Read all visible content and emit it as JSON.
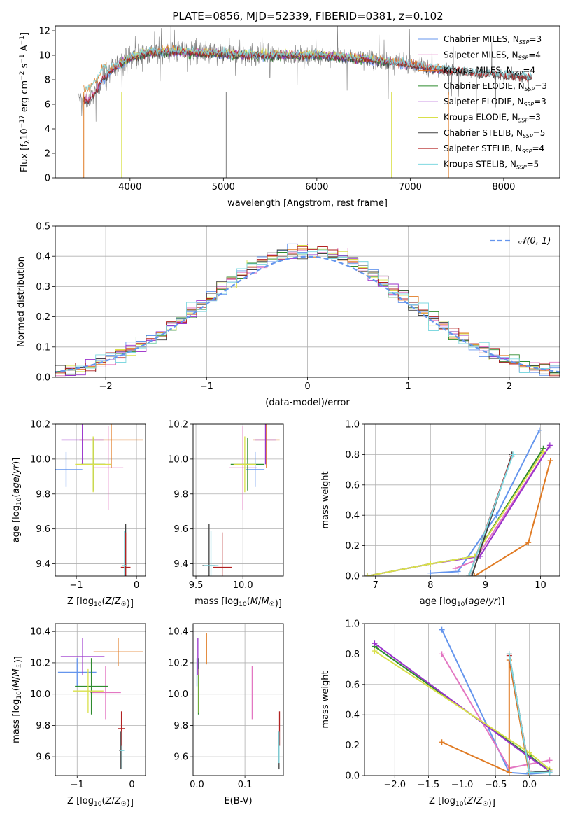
{
  "chart_data": [
    {
      "id": "spectrum",
      "type": "line",
      "title": "PLATE=0856, MJD=52339, FIBERID=0381, z=0.102",
      "xlabel": "wavelength [Angstrom, rest frame]",
      "ylabel": "Flux [f_λ10^{-17} erg cm^{-2} s^{-1} A^{-1}]",
      "xlim": [
        3200,
        8600
      ],
      "ylim": [
        0,
        12.4
      ],
      "xticks": [
        4000,
        5000,
        6000,
        7000,
        8000
      ],
      "yticks": [
        0,
        2,
        4,
        6,
        8,
        10,
        12
      ],
      "legend_position": "right",
      "series": [
        {
          "name": "Chabrier MILES, N_SSP=3",
          "color": "#6495ed",
          "start": 3500,
          "end": 7400
        },
        {
          "name": "Salpeter MILES, N_SSP=4",
          "color": "#e377c2",
          "start": 3500,
          "end": 7400
        },
        {
          "name": "Kroupa MILES, N_SSP=4",
          "color": "#e07b24",
          "start": 3500,
          "end": 7400
        },
        {
          "name": "Chabrier ELODIE, N_SSP=3",
          "color": "#2e8b2e",
          "start": 3900,
          "end": 6800
        },
        {
          "name": "Salpeter ELODIE, N_SSP=3",
          "color": "#9932cc",
          "start": 3900,
          "end": 6800
        },
        {
          "name": "Kroupa ELODIE, N_SSP=3",
          "color": "#d9e04a",
          "start": 3900,
          "end": 6800
        },
        {
          "name": "Chabrier STELIB, N_SSP=5",
          "color": "#404040",
          "start": 3500,
          "end": 8300
        },
        {
          "name": "Salpeter STELIB, N_SSP=4",
          "color": "#b22222",
          "start": 3500,
          "end": 8300
        },
        {
          "name": "Kroupa STELIB, N_SSP=5",
          "color": "#7fd8e0",
          "start": 3500,
          "end": 8300
        }
      ],
      "data_color": "#808080",
      "continuum": {
        "x": [
          3450,
          3550,
          3650,
          3700,
          3800,
          3900,
          4000,
          4200,
          4500,
          5000,
          5500,
          6000,
          6500,
          7000,
          7500,
          8000,
          8300
        ],
        "y": [
          6.5,
          6.3,
          7.2,
          8.0,
          8.8,
          9.3,
          9.8,
          10.2,
          10.3,
          10.1,
          10.0,
          10.0,
          9.7,
          9.2,
          8.7,
          8.4,
          8.2
        ]
      }
    },
    {
      "id": "residuals",
      "type": "histogram",
      "xlabel": "(data-model)/error",
      "ylabel": "Normed distribution",
      "xlim": [
        -2.5,
        2.5
      ],
      "ylim": [
        0,
        0.5
      ],
      "xticks": [
        -2,
        -1,
        0,
        1,
        2
      ],
      "yticks": [
        0.0,
        0.1,
        0.2,
        0.3,
        0.4,
        0.5
      ],
      "legend": [
        {
          "name": "N(0,1)",
          "label_text": "𝒩(0, 1)",
          "color": "#6495ed",
          "style": "dashed"
        }
      ],
      "bin_width": 0.1
    },
    {
      "id": "age-vs-Z",
      "type": "errorbar",
      "xlabel": "Z [log10(Z/Z☉)]",
      "ylabel": "age [log10(age/yr)]",
      "xlim": [
        -1.35,
        0.15
      ],
      "ylim": [
        9.33,
        10.2
      ],
      "xticks": [
        -1,
        0
      ],
      "yticks": [
        9.4,
        9.6,
        9.8,
        10.0,
        10.2
      ],
      "points": [
        {
          "color": "#6495ed",
          "x": -1.17,
          "xerr": 0.27,
          "y": 9.94,
          "yerr": 0.1
        },
        {
          "color": "#e377c2",
          "x": -0.47,
          "xerr": 0.25,
          "y": 9.95,
          "yerr": 0.24
        },
        {
          "color": "#e07b24",
          "x": -0.42,
          "xerr": 0.53,
          "y": 10.11,
          "yerr": 0.16
        },
        {
          "color": "#2e8b2e",
          "x": -0.72,
          "xerr": 0.2,
          "y": 9.97,
          "yerr": 0.15
        },
        {
          "color": "#9932cc",
          "x": -0.9,
          "xerr": 0.35,
          "y": 10.11,
          "yerr": 0.14
        },
        {
          "color": "#d9e04a",
          "x": -0.72,
          "xerr": 0.3,
          "y": 9.97,
          "yerr": 0.16
        },
        {
          "color": "#404040",
          "x": -0.18,
          "xerr": 0.02,
          "y": 9.39,
          "yerr": 0.24
        },
        {
          "color": "#b22222",
          "x": -0.18,
          "xerr": 0.08,
          "y": 9.38,
          "yerr": 0.2
        },
        {
          "color": "#7fd8e0",
          "x": -0.2,
          "xerr": 0.04,
          "y": 9.39,
          "yerr": 0.2
        }
      ]
    },
    {
      "id": "age-vs-mass",
      "type": "errorbar",
      "xlabel": "mass [log10(M/M☉)]",
      "ylabel": "",
      "xlim": [
        9.47,
        10.43
      ],
      "ylim": [
        9.33,
        10.2
      ],
      "xticks": [
        9.5,
        10.0
      ],
      "yticks": [
        9.4,
        9.6,
        9.8,
        10.0,
        10.2
      ],
      "points": [
        {
          "color": "#6495ed",
          "x": 10.13,
          "xerr": 0.1,
          "y": 9.94,
          "yerr": 0.1
        },
        {
          "color": "#e377c2",
          "x": 10.0,
          "xerr": 0.15,
          "y": 9.95,
          "yerr": 0.24
        },
        {
          "color": "#e07b24",
          "x": 10.25,
          "xerr": 0.14,
          "y": 10.11,
          "yerr": 0.16
        },
        {
          "color": "#2e8b2e",
          "x": 10.05,
          "xerr": 0.18,
          "y": 9.97,
          "yerr": 0.15
        },
        {
          "color": "#9932cc",
          "x": 10.24,
          "xerr": 0.11,
          "y": 10.11,
          "yerr": 0.14
        },
        {
          "color": "#d9e04a",
          "x": 10.02,
          "xerr": 0.12,
          "y": 9.97,
          "yerr": 0.16
        },
        {
          "color": "#404040",
          "x": 9.64,
          "xerr": 0.07,
          "y": 9.39,
          "yerr": 0.24
        },
        {
          "color": "#b22222",
          "x": 9.78,
          "xerr": 0.1,
          "y": 9.38,
          "yerr": 0.2
        },
        {
          "color": "#7fd8e0",
          "x": 9.66,
          "xerr": 0.08,
          "y": 9.39,
          "yerr": 0.2
        }
      ]
    },
    {
      "id": "massweight-vs-age",
      "type": "line",
      "xlabel": "age [log10(age/yr)]",
      "ylabel": "mass weight",
      "xlim": [
        6.8,
        10.35
      ],
      "ylim": [
        0,
        1.0
      ],
      "xticks": [
        7,
        8,
        9,
        10
      ],
      "yticks": [
        0.0,
        0.2,
        0.4,
        0.6,
        0.8,
        1.0
      ],
      "series": [
        {
          "color": "#6495ed",
          "points": [
            [
              8.0,
              0.02
            ],
            [
              8.5,
              0.03
            ],
            [
              9.2,
              0.4
            ],
            [
              9.98,
              0.96
            ]
          ]
        },
        {
          "color": "#e377c2",
          "points": [
            [
              8.45,
              0.05
            ],
            [
              8.8,
              0.1
            ],
            [
              10.15,
              0.85
            ]
          ]
        },
        {
          "color": "#e07b24",
          "points": [
            [
              8.8,
              0.0
            ],
            [
              9.78,
              0.22
            ],
            [
              10.18,
              0.76
            ]
          ]
        },
        {
          "color": "#2e8b2e",
          "points": [
            [
              6.85,
              0.0
            ],
            [
              8.0,
              0.08
            ],
            [
              8.8,
              0.13
            ],
            [
              10.05,
              0.84
            ]
          ]
        },
        {
          "color": "#9932cc",
          "points": [
            [
              6.85,
              0.0
            ],
            [
              8.0,
              0.08
            ],
            [
              8.9,
              0.13
            ],
            [
              10.17,
              0.86
            ]
          ]
        },
        {
          "color": "#d9e04a",
          "points": [
            [
              6.85,
              0.0
            ],
            [
              8.0,
              0.08
            ],
            [
              8.8,
              0.13
            ],
            [
              10.05,
              0.82
            ]
          ]
        },
        {
          "color": "#404040",
          "points": [
            [
              8.75,
              0.0
            ],
            [
              9.48,
              0.8
            ]
          ]
        },
        {
          "color": "#b22222",
          "points": [
            [
              8.7,
              0.0
            ],
            [
              9.48,
              0.79
            ]
          ]
        },
        {
          "color": "#7fd8e0",
          "points": [
            [
              8.7,
              0.0
            ],
            [
              9.5,
              0.8
            ]
          ]
        }
      ]
    },
    {
      "id": "mass-vs-Z",
      "type": "errorbar",
      "xlabel": "Z [log10(Z/Z☉)]",
      "ylabel": "mass [log10(M/M☉)]",
      "xlim": [
        -1.4,
        0.25
      ],
      "ylim": [
        9.48,
        10.45
      ],
      "xticks": [
        -1,
        0
      ],
      "yticks": [
        9.6,
        9.8,
        10.0,
        10.2,
        10.4
      ],
      "points": [
        {
          "color": "#6495ed",
          "x": -1.0,
          "xerr": 0.35,
          "y": 10.14,
          "yerr": 0.09
        },
        {
          "color": "#e377c2",
          "x": -0.48,
          "xerr": 0.28,
          "y": 10.01,
          "yerr": 0.17
        },
        {
          "color": "#e07b24",
          "x": -0.25,
          "xerr": 0.45,
          "y": 10.27,
          "yerr": 0.09
        },
        {
          "color": "#2e8b2e",
          "x": -0.74,
          "xerr": 0.3,
          "y": 10.05,
          "yerr": 0.18
        },
        {
          "color": "#9932cc",
          "x": -0.9,
          "xerr": 0.4,
          "y": 10.24,
          "yerr": 0.12
        },
        {
          "color": "#d9e04a",
          "x": -0.8,
          "xerr": 0.28,
          "y": 10.02,
          "yerr": 0.14
        },
        {
          "color": "#404040",
          "x": -0.2,
          "xerr": 0.03,
          "y": 9.64,
          "yerr": 0.12
        },
        {
          "color": "#b22222",
          "x": -0.19,
          "xerr": 0.06,
          "y": 9.78,
          "yerr": 0.11
        },
        {
          "color": "#7fd8e0",
          "x": -0.18,
          "xerr": 0.04,
          "y": 9.64,
          "yerr": 0.12
        }
      ]
    },
    {
      "id": "mass-vs-ebv",
      "type": "errorbar",
      "xlabel": "E(B-V)",
      "ylabel": "",
      "xlim": [
        -0.008,
        0.18
      ],
      "ylim": [
        9.48,
        10.45
      ],
      "xticks": [
        0.0,
        0.1
      ],
      "yticks": [
        9.6,
        9.8,
        10.0,
        10.2,
        10.4
      ],
      "points": [
        {
          "color": "#6495ed",
          "x": 0.0,
          "xerr": 0,
          "y": 10.14,
          "yerr": 0.09
        },
        {
          "color": "#e377c2",
          "x": 0.115,
          "xerr": 0,
          "y": 10.01,
          "yerr": 0.17
        },
        {
          "color": "#e07b24",
          "x": 0.02,
          "xerr": 0,
          "y": 10.29,
          "yerr": 0.1
        },
        {
          "color": "#2e8b2e",
          "x": 0.003,
          "xerr": 0,
          "y": 10.05,
          "yerr": 0.18
        },
        {
          "color": "#9932cc",
          "x": 0.002,
          "xerr": 0,
          "y": 10.24,
          "yerr": 0.12
        },
        {
          "color": "#d9e04a",
          "x": 0.004,
          "xerr": 0,
          "y": 10.02,
          "yerr": 0.14
        },
        {
          "color": "#404040",
          "x": 0.171,
          "xerr": 0,
          "y": 9.64,
          "yerr": 0.12
        },
        {
          "color": "#b22222",
          "x": 0.172,
          "xerr": 0,
          "y": 9.78,
          "yerr": 0.11
        },
        {
          "color": "#7fd8e0",
          "x": 0.171,
          "xerr": 0,
          "y": 9.66,
          "yerr": 0.1
        }
      ]
    },
    {
      "id": "massweight-vs-Z",
      "type": "line",
      "xlabel": "Z [log10(Z/Z☉)]",
      "ylabel": "mass weight",
      "xlim": [
        -2.45,
        0.45
      ],
      "ylim": [
        0,
        1.0
      ],
      "xticks": [
        -2.0,
        -1.5,
        -1.0,
        -0.5,
        0.0
      ],
      "yticks": [
        0.0,
        0.2,
        0.4,
        0.6,
        0.8,
        1.0
      ],
      "series": [
        {
          "color": "#6495ed",
          "points": [
            [
              -1.3,
              0.96
            ],
            [
              -0.3,
              0.02
            ],
            [
              0.0,
              0.01
            ],
            [
              0.3,
              0.02
            ]
          ]
        },
        {
          "color": "#e377c2",
          "points": [
            [
              -1.3,
              0.8
            ],
            [
              -0.3,
              0.05
            ],
            [
              0.3,
              0.1
            ]
          ]
        },
        {
          "color": "#e07b24",
          "points": [
            [
              -1.3,
              0.22
            ],
            [
              -0.3,
              0.02
            ],
            [
              -0.3,
              0.76
            ],
            [
              0.0,
              0.0
            ]
          ]
        },
        {
          "color": "#2e8b2e",
          "points": [
            [
              -2.3,
              0.85
            ],
            [
              0.0,
              0.13
            ],
            [
              0.3,
              0.03
            ]
          ]
        },
        {
          "color": "#9932cc",
          "points": [
            [
              -2.3,
              0.87
            ],
            [
              0.0,
              0.12
            ],
            [
              0.3,
              0.03
            ]
          ]
        },
        {
          "color": "#d9e04a",
          "points": [
            [
              -2.3,
              0.82
            ],
            [
              0.0,
              0.15
            ],
            [
              0.3,
              0.04
            ]
          ]
        },
        {
          "color": "#404040",
          "points": [
            [
              -0.3,
              0.8
            ],
            [
              0.0,
              0.02
            ],
            [
              0.3,
              0.03
            ]
          ]
        },
        {
          "color": "#b22222",
          "points": [
            [
              -0.3,
              0.79
            ],
            [
              0.0,
              0.03
            ]
          ]
        },
        {
          "color": "#7fd8e0",
          "points": [
            [
              -0.3,
              0.8
            ],
            [
              0.0,
              0.02
            ],
            [
              0.3,
              0.02
            ]
          ]
        }
      ]
    }
  ]
}
